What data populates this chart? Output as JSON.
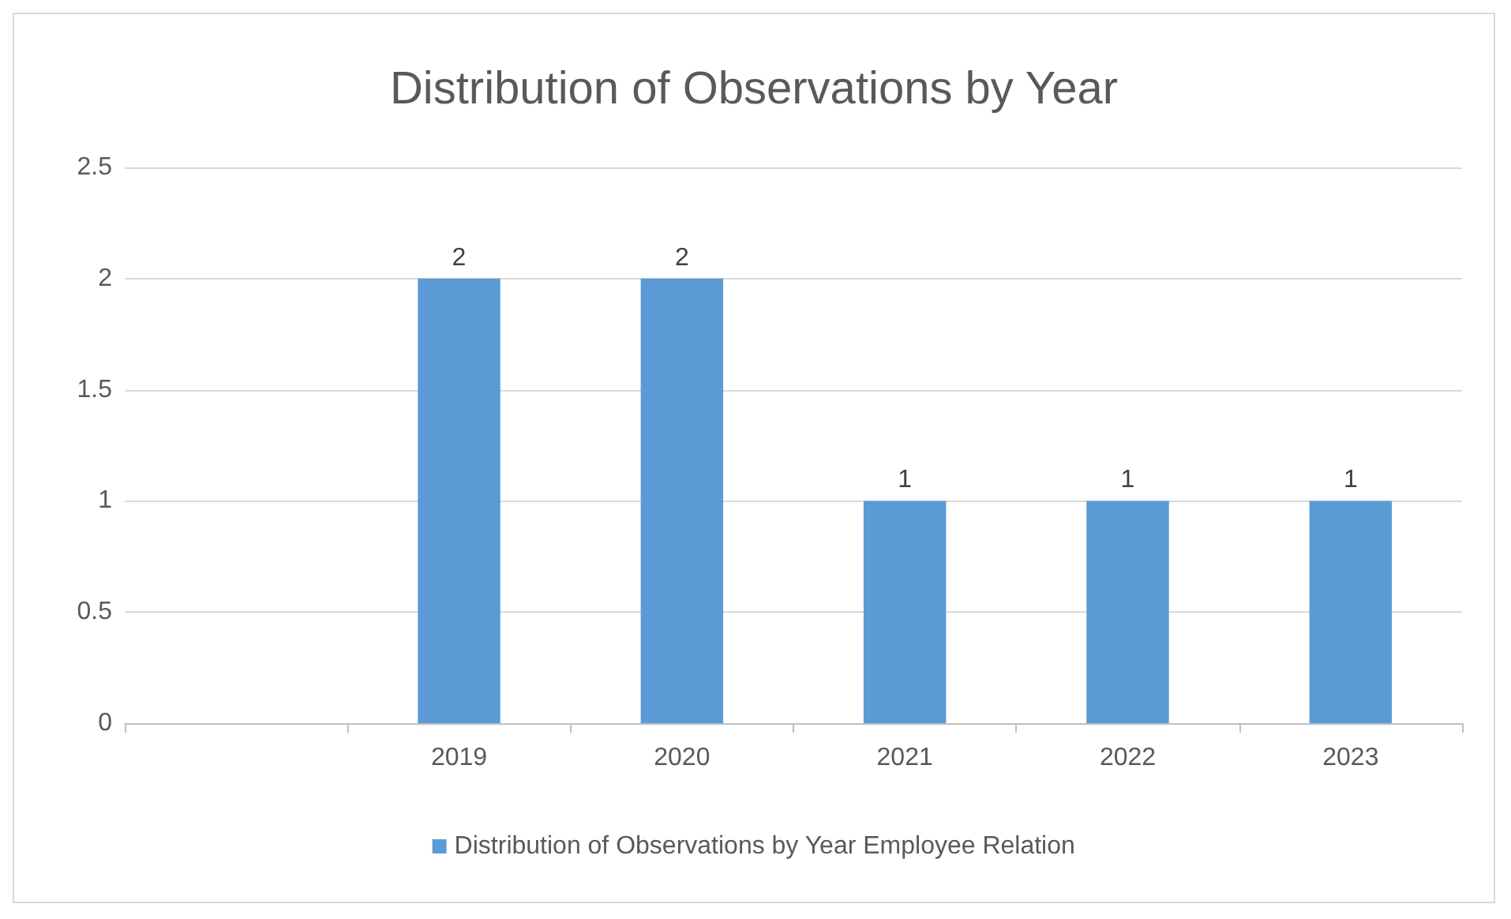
{
  "chart_data": {
    "type": "bar",
    "title": "Distribution of Observations by Year",
    "categories": [
      null,
      "2019",
      "2020",
      "2021",
      "2022",
      "2023"
    ],
    "series": [
      {
        "name": "Distribution of Observations by Year Employee Relation",
        "color": "#5b9bd5",
        "values": [
          null,
          2,
          2,
          1,
          1,
          1
        ]
      }
    ],
    "ylim": [
      0,
      2.5
    ],
    "yticks": [
      0,
      0.5,
      1,
      1.5,
      2,
      2.5
    ],
    "grid": "y",
    "legend": "bottom",
    "data_labels": true
  }
}
